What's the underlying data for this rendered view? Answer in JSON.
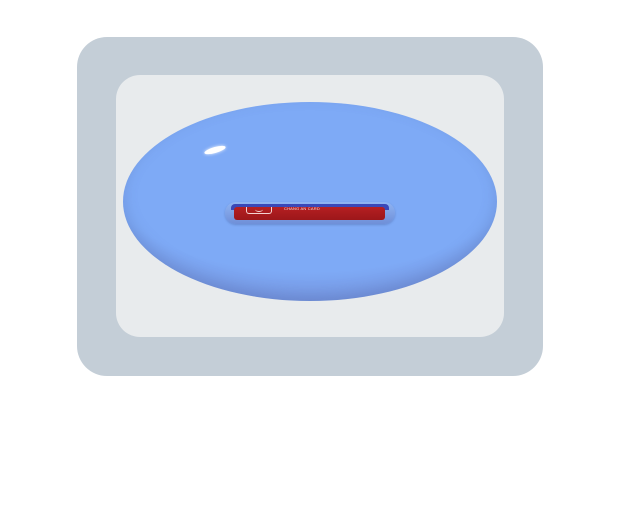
{
  "card": {
    "label": "CHANG AN CARD",
    "color": "#a61b1e"
  },
  "colors": {
    "frame": "#c4ced7",
    "panel": "#e8ebed",
    "blob": "#7eaaf6",
    "slot": "#3a48b8"
  },
  "icons": {
    "card_logo": "bank-logo-icon"
  }
}
